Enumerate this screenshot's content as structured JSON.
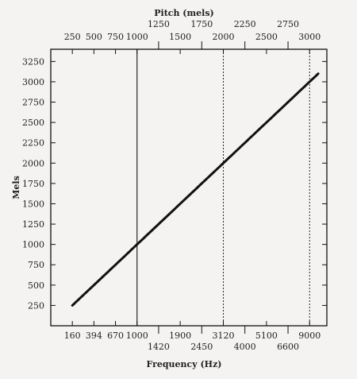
{
  "chart_data": {
    "type": "line",
    "ylabel": "Mels",
    "xlabel": "Frequency (Hz)",
    "top_axis_label": "Pitch (mels)",
    "ylim": [
      0,
      3400
    ],
    "yticks": [
      "250",
      "500",
      "750",
      "1000",
      "1250",
      "1500",
      "1750",
      "2000",
      "2250",
      "2500",
      "2750",
      "3000",
      "3250"
    ],
    "bottom_ticks_row1": [
      "160",
      "394",
      "670",
      "1000",
      "1900",
      "3120",
      "5100",
      "9000"
    ],
    "bottom_ticks_row2": [
      "1420",
      "2450",
      "4000",
      "6600"
    ],
    "top_ticks_row1": [
      "250",
      "500",
      "750",
      "1000",
      "1500",
      "2000",
      "2500",
      "3000"
    ],
    "top_ticks_row2": [
      "1250",
      "1750",
      "2250",
      "2750"
    ],
    "reference_lines_hz": [
      1000,
      3120,
      9000
    ],
    "series": [
      {
        "x": [
          160,
          394,
          670,
          1000,
          1420,
          1900,
          2450,
          3120,
          4000,
          5100,
          6600,
          9000,
          10000
        ],
        "y": [
          250,
          500,
          750,
          1000,
          1250,
          1500,
          1750,
          2000,
          2250,
          2500,
          2750,
          3000,
          3100
        ]
      }
    ],
    "grid": false,
    "line_color": "#111111"
  }
}
